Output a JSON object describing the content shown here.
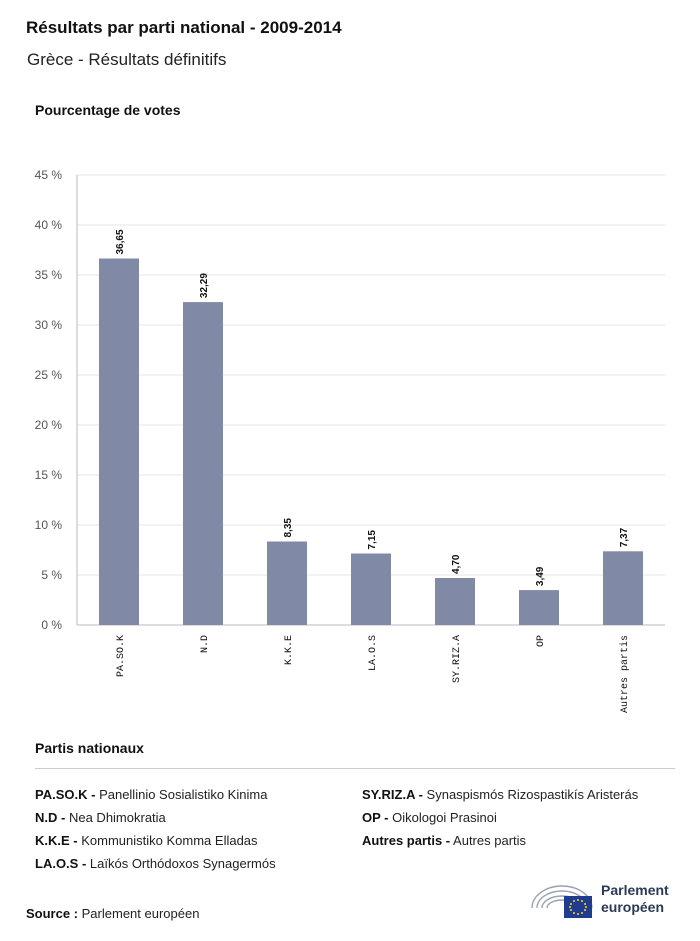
{
  "header": {
    "title": "Résultats par parti national - 2009-2014",
    "subtitle": "Grèce - Résultats définitifs"
  },
  "chart_data": {
    "type": "bar",
    "ylabel": "Pourcentage de votes",
    "categories": [
      "PA.SO.K",
      "N.D",
      "K.K.E",
      "LA.O.S",
      "SY.RIZ.A",
      "OP",
      "Autres partis"
    ],
    "values": [
      36.65,
      32.29,
      8.35,
      7.15,
      4.7,
      3.49,
      7.37
    ],
    "value_labels": [
      "36,65",
      "32,29",
      "8,35",
      "7,15",
      "4,70",
      "3,49",
      "7,37"
    ],
    "ylim": [
      0,
      45
    ],
    "y_ticks": [
      "0 %",
      "5 %",
      "10 %",
      "15 %",
      "20 %",
      "25 %",
      "30 %",
      "35 %",
      "40 %",
      "45 %"
    ],
    "grid": true,
    "bar_color": "#8089a6"
  },
  "legend": {
    "title": "Partis nationaux",
    "col1": [
      {
        "abbr": "PA.SO.K -",
        "name": "Panellinio Sosialistiko Kinima"
      },
      {
        "abbr": "N.D -",
        "name": "Nea Dhimokratia"
      },
      {
        "abbr": "K.K.E -",
        "name": "Kommunistiko Komma Elladas"
      },
      {
        "abbr": "LA.O.S -",
        "name": "Laïkós Orthódoxos Synagermós"
      }
    ],
    "col2": [
      {
        "abbr": "SY.RIZ.A -",
        "name": "Synaspismós Rizospastikís Aristerás"
      },
      {
        "abbr": "OP -",
        "name": "Oikologoi Prasinoi"
      },
      {
        "abbr": "Autres partis -",
        "name": "Autres partis"
      }
    ]
  },
  "footer": {
    "source_label": "Source :",
    "source_text": "Parlement européen",
    "logo_line1": "Parlement",
    "logo_line2": "européen"
  }
}
